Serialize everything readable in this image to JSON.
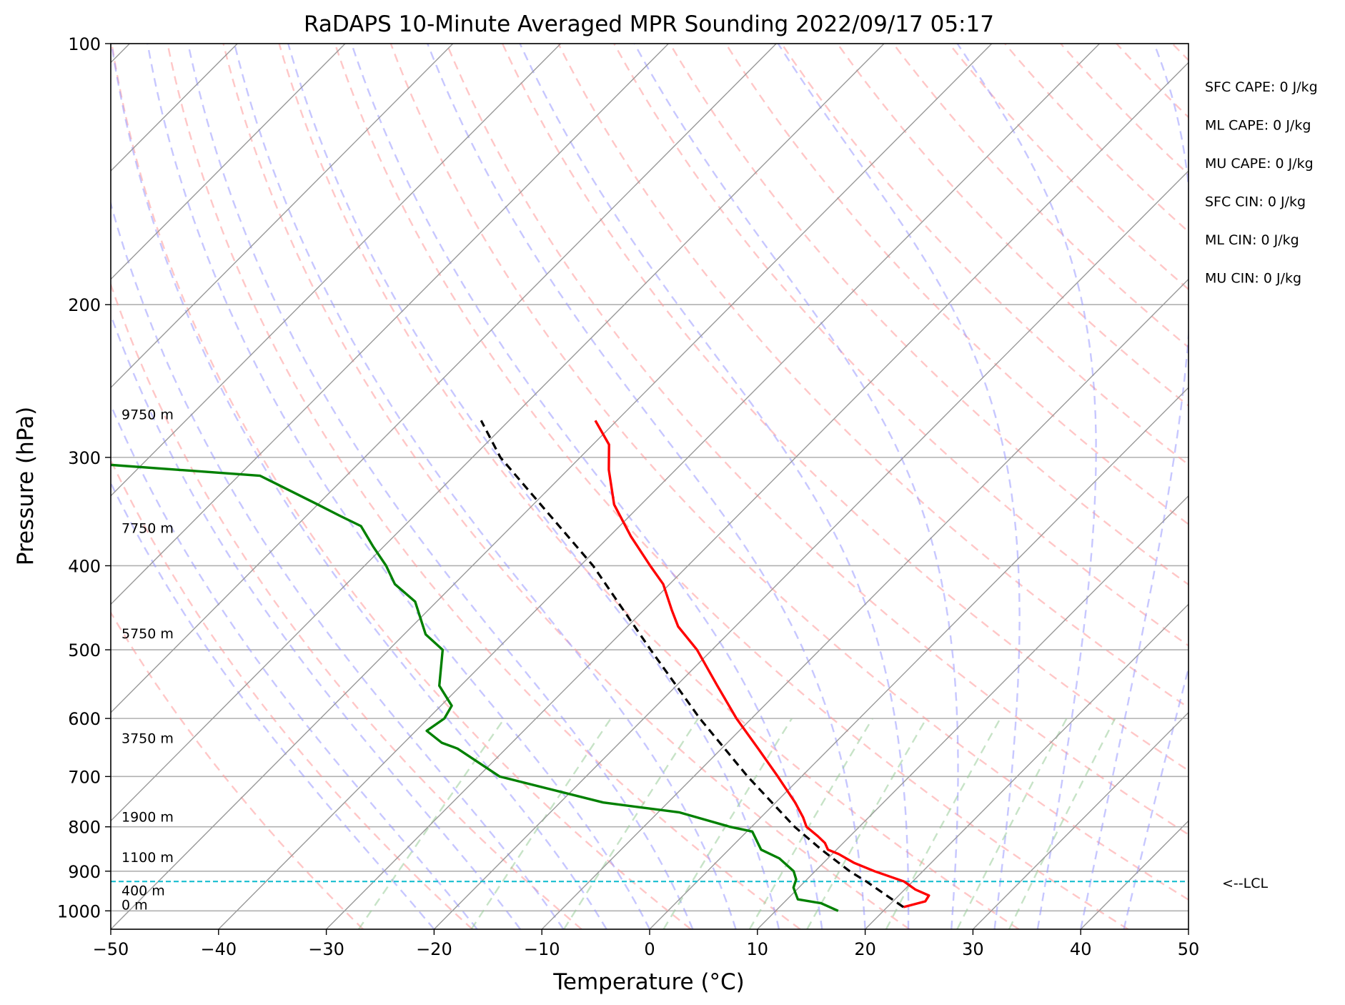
{
  "chart_data": {
    "type": "line",
    "title": "RaDAPS 10-Minute Averaged MPR Sounding 2022/09/17 05:17",
    "xlabel": "Temperature (°C)",
    "ylabel": "Pressure (hPa)",
    "xlim": [
      -50,
      50
    ],
    "ylim": [
      1050,
      100
    ],
    "y_scale": "log",
    "x_ticks": [
      -50,
      -40,
      -30,
      -20,
      -10,
      0,
      10,
      20,
      30,
      40,
      50
    ],
    "x_tick_labels": [
      "−50",
      "−40",
      "−30",
      "−20",
      "−10",
      "0",
      "10",
      "20",
      "30",
      "40",
      "50"
    ],
    "y_ticks": [
      100,
      200,
      300,
      400,
      500,
      600,
      700,
      800,
      900,
      1000
    ],
    "y_tick_labels": [
      "100",
      "200",
      "300",
      "400",
      "500",
      "600",
      "700",
      "800",
      "900",
      "1000"
    ],
    "grid": true,
    "skew": true,
    "colors": {
      "temperature": "#ff0000",
      "dewpoint": "#008000",
      "parcel": "#000000",
      "lcl": "#17becf",
      "dry_adiabat": "#ff9999",
      "moist_adiabat": "#9999ff",
      "mixing_ratio": "#99cc99",
      "isotherm": "#999999"
    },
    "series": [
      {
        "key": "temperature",
        "p": [
          990,
          975,
          960,
          945,
          925,
          900,
          880,
          860,
          850,
          835,
          820,
          800,
          780,
          750,
          700,
          650,
          600,
          550,
          500,
          470,
          450,
          420,
          400,
          370,
          340,
          310,
          290,
          272
        ],
        "t": [
          21.5,
          23.0,
          22.8,
          21.0,
          19.2,
          15.5,
          12.8,
          10.6,
          9.2,
          8.3,
          7.0,
          5.1,
          3.9,
          1.8,
          -2.2,
          -6.6,
          -11.4,
          -16.2,
          -21.4,
          -25.3,
          -27.4,
          -30.6,
          -33.5,
          -38.0,
          -42.5,
          -46.2,
          -48.5,
          -52.0
        ]
      },
      {
        "key": "dewpoint",
        "p": [
          1000,
          980,
          970,
          950,
          940,
          920,
          900,
          870,
          850,
          810,
          800,
          770,
          750,
          700,
          650,
          640,
          620,
          600,
          580,
          550,
          500,
          480,
          440,
          420,
          400,
          380,
          360,
          350,
          340,
          315,
          303,
          295
        ],
        "t": [
          15.8,
          13.5,
          11.0,
          10.0,
          9.5,
          9.0,
          8.0,
          5.5,
          3.0,
          0.5,
          -2.0,
          -8.0,
          -16.0,
          -28.0,
          -34.5,
          -36.5,
          -39.0,
          -38.5,
          -39.0,
          -42.0,
          -45.0,
          -48.0,
          -52.0,
          -55.5,
          -58.0,
          -61.0,
          -64.0,
          -67.0,
          -70.0,
          -78.0,
          -98.0,
          -125.0
        ]
      },
      {
        "key": "parcel",
        "p": [
          990,
          925,
          900,
          850,
          800,
          700,
          600,
          500,
          400,
          300,
          272
        ],
        "t": [
          21.5,
          15.7,
          13.2,
          8.6,
          4.0,
          -5.0,
          -14.8,
          -25.7,
          -38.8,
          -57.4,
          -62.6
        ]
      }
    ],
    "lcl": {
      "p": 925,
      "label": "<--LCL"
    },
    "height_labels": [
      {
        "label": "9750 m",
        "p": 272
      },
      {
        "label": "7750 m",
        "p": 368
      },
      {
        "label": "5750 m",
        "p": 487
      },
      {
        "label": "3750 m",
        "p": 643
      },
      {
        "label": "1900 m",
        "p": 792
      },
      {
        "label": "1100 m",
        "p": 882
      },
      {
        "label": "400 m",
        "p": 963
      },
      {
        "label": "0 m",
        "p": 1000
      }
    ],
    "annotations": [
      "SFC CAPE: 0 J/kg",
      "ML CAPE: 0 J/kg",
      "MU CAPE: 0 J/kg",
      "SFC CIN: 0 J/kg",
      "ML CIN: 0 J/kg",
      "MU CIN: 0 J/kg"
    ]
  }
}
